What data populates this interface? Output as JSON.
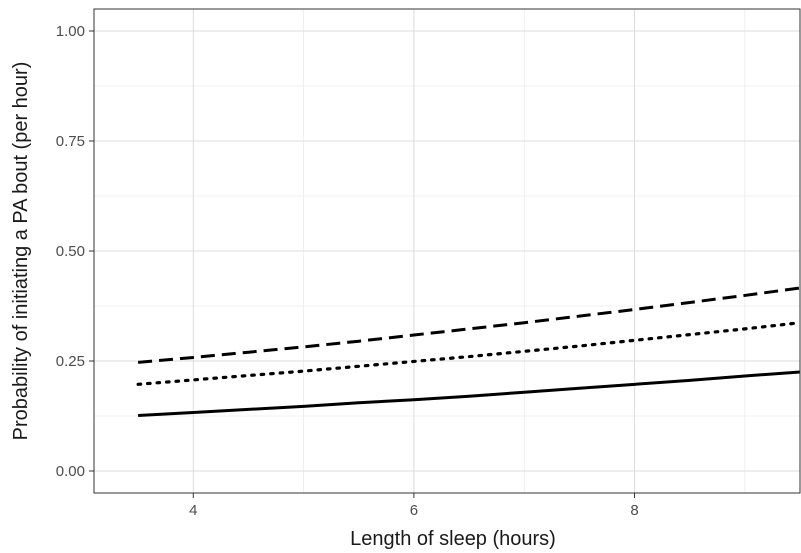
{
  "chart_data": {
    "type": "line",
    "title": "",
    "xlabel": "Length of sleep (hours)",
    "ylabel": "Probability of initiating a PA bout (per hour)",
    "xlim": [
      3.1,
      9.5
    ],
    "ylim": [
      -0.05,
      1.05
    ],
    "x_ticks": [
      4,
      6,
      8
    ],
    "x_tick_labels": [
      "4",
      "6",
      "8"
    ],
    "y_ticks": [
      0,
      0.25,
      0.5,
      0.75,
      1
    ],
    "y_tick_labels": [
      "0.00",
      "0.25",
      "0.50",
      "0.75",
      "1.00"
    ],
    "x": [
      3.5,
      4,
      4.5,
      5,
      5.5,
      6,
      6.5,
      7,
      7.5,
      8,
      8.5,
      9,
      9.5
    ],
    "grid": true,
    "legend": "none",
    "series": [
      {
        "line_style": "dashed",
        "color": "#000000",
        "values": [
          0.247,
          0.258,
          0.27,
          0.282,
          0.295,
          0.309,
          0.323,
          0.337,
          0.352,
          0.367,
          0.383,
          0.399,
          0.416
        ]
      },
      {
        "line_style": "dotted",
        "color": "#000000",
        "values": [
          0.197,
          0.207,
          0.217,
          0.227,
          0.238,
          0.249,
          0.26,
          0.272,
          0.284,
          0.297,
          0.31,
          0.323,
          0.337
        ]
      },
      {
        "line_style": "solid",
        "color": "#000000",
        "values": [
          0.126,
          0.133,
          0.14,
          0.147,
          0.155,
          0.162,
          0.17,
          0.179,
          0.188,
          0.197,
          0.206,
          0.216,
          0.225
        ]
      }
    ]
  }
}
